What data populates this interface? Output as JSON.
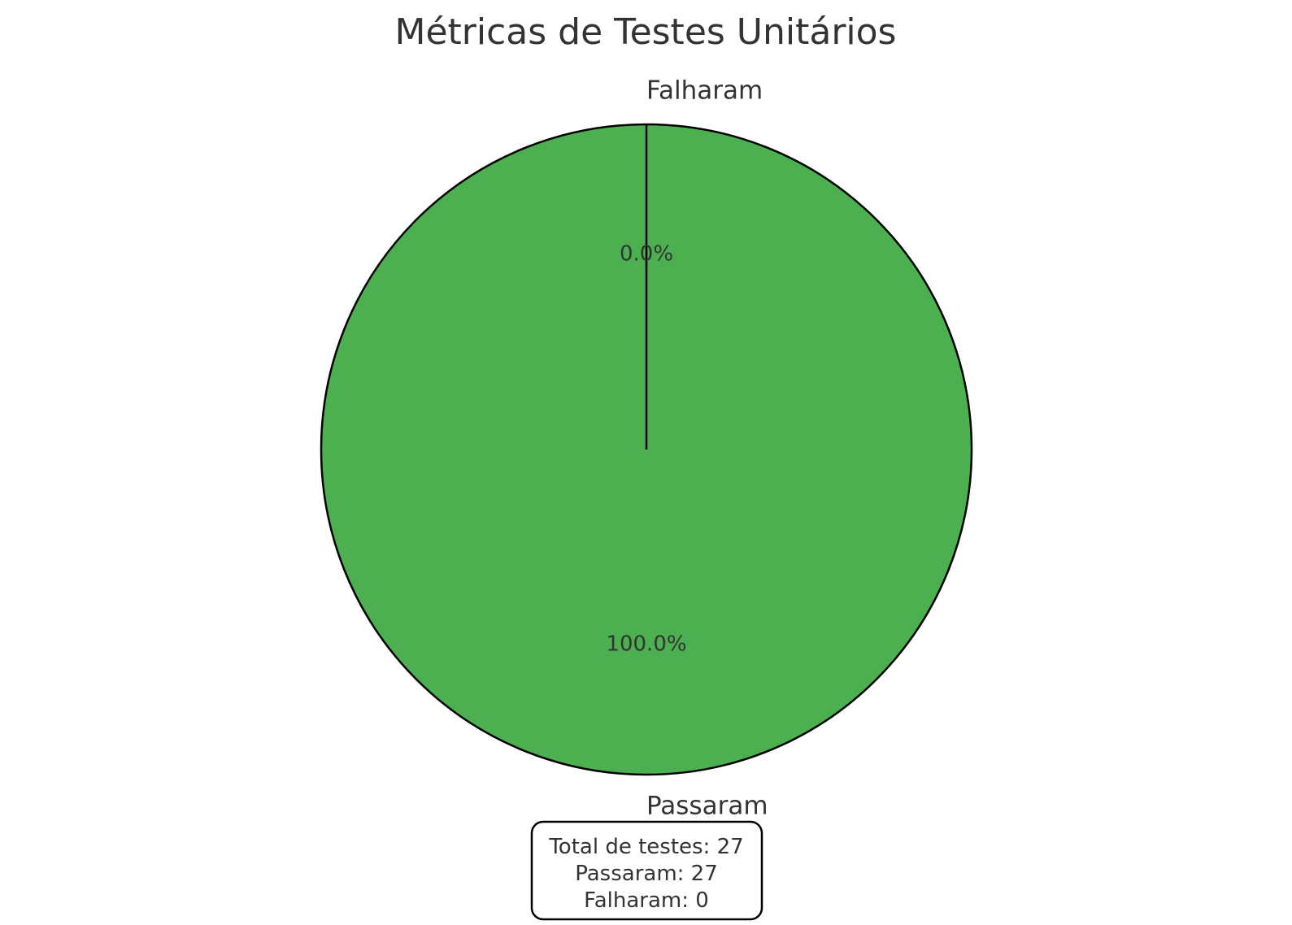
{
  "chart_data": {
    "type": "pie",
    "title": "Métricas de Testes Unitários",
    "categories": [
      "Passaram",
      "Falharam"
    ],
    "values": [
      27,
      0
    ],
    "percent_labels": [
      "100.0%",
      "0.0%"
    ],
    "colors": [
      "#4caf50",
      "#f44336"
    ],
    "edge_color": "#000000",
    "start_angle_deg": 90,
    "direction": "counterclockwise",
    "legend": "none"
  },
  "summary_box": {
    "lines": [
      "Total de testes: 27",
      "Passaram: 27",
      "Falharam: 0"
    ]
  }
}
